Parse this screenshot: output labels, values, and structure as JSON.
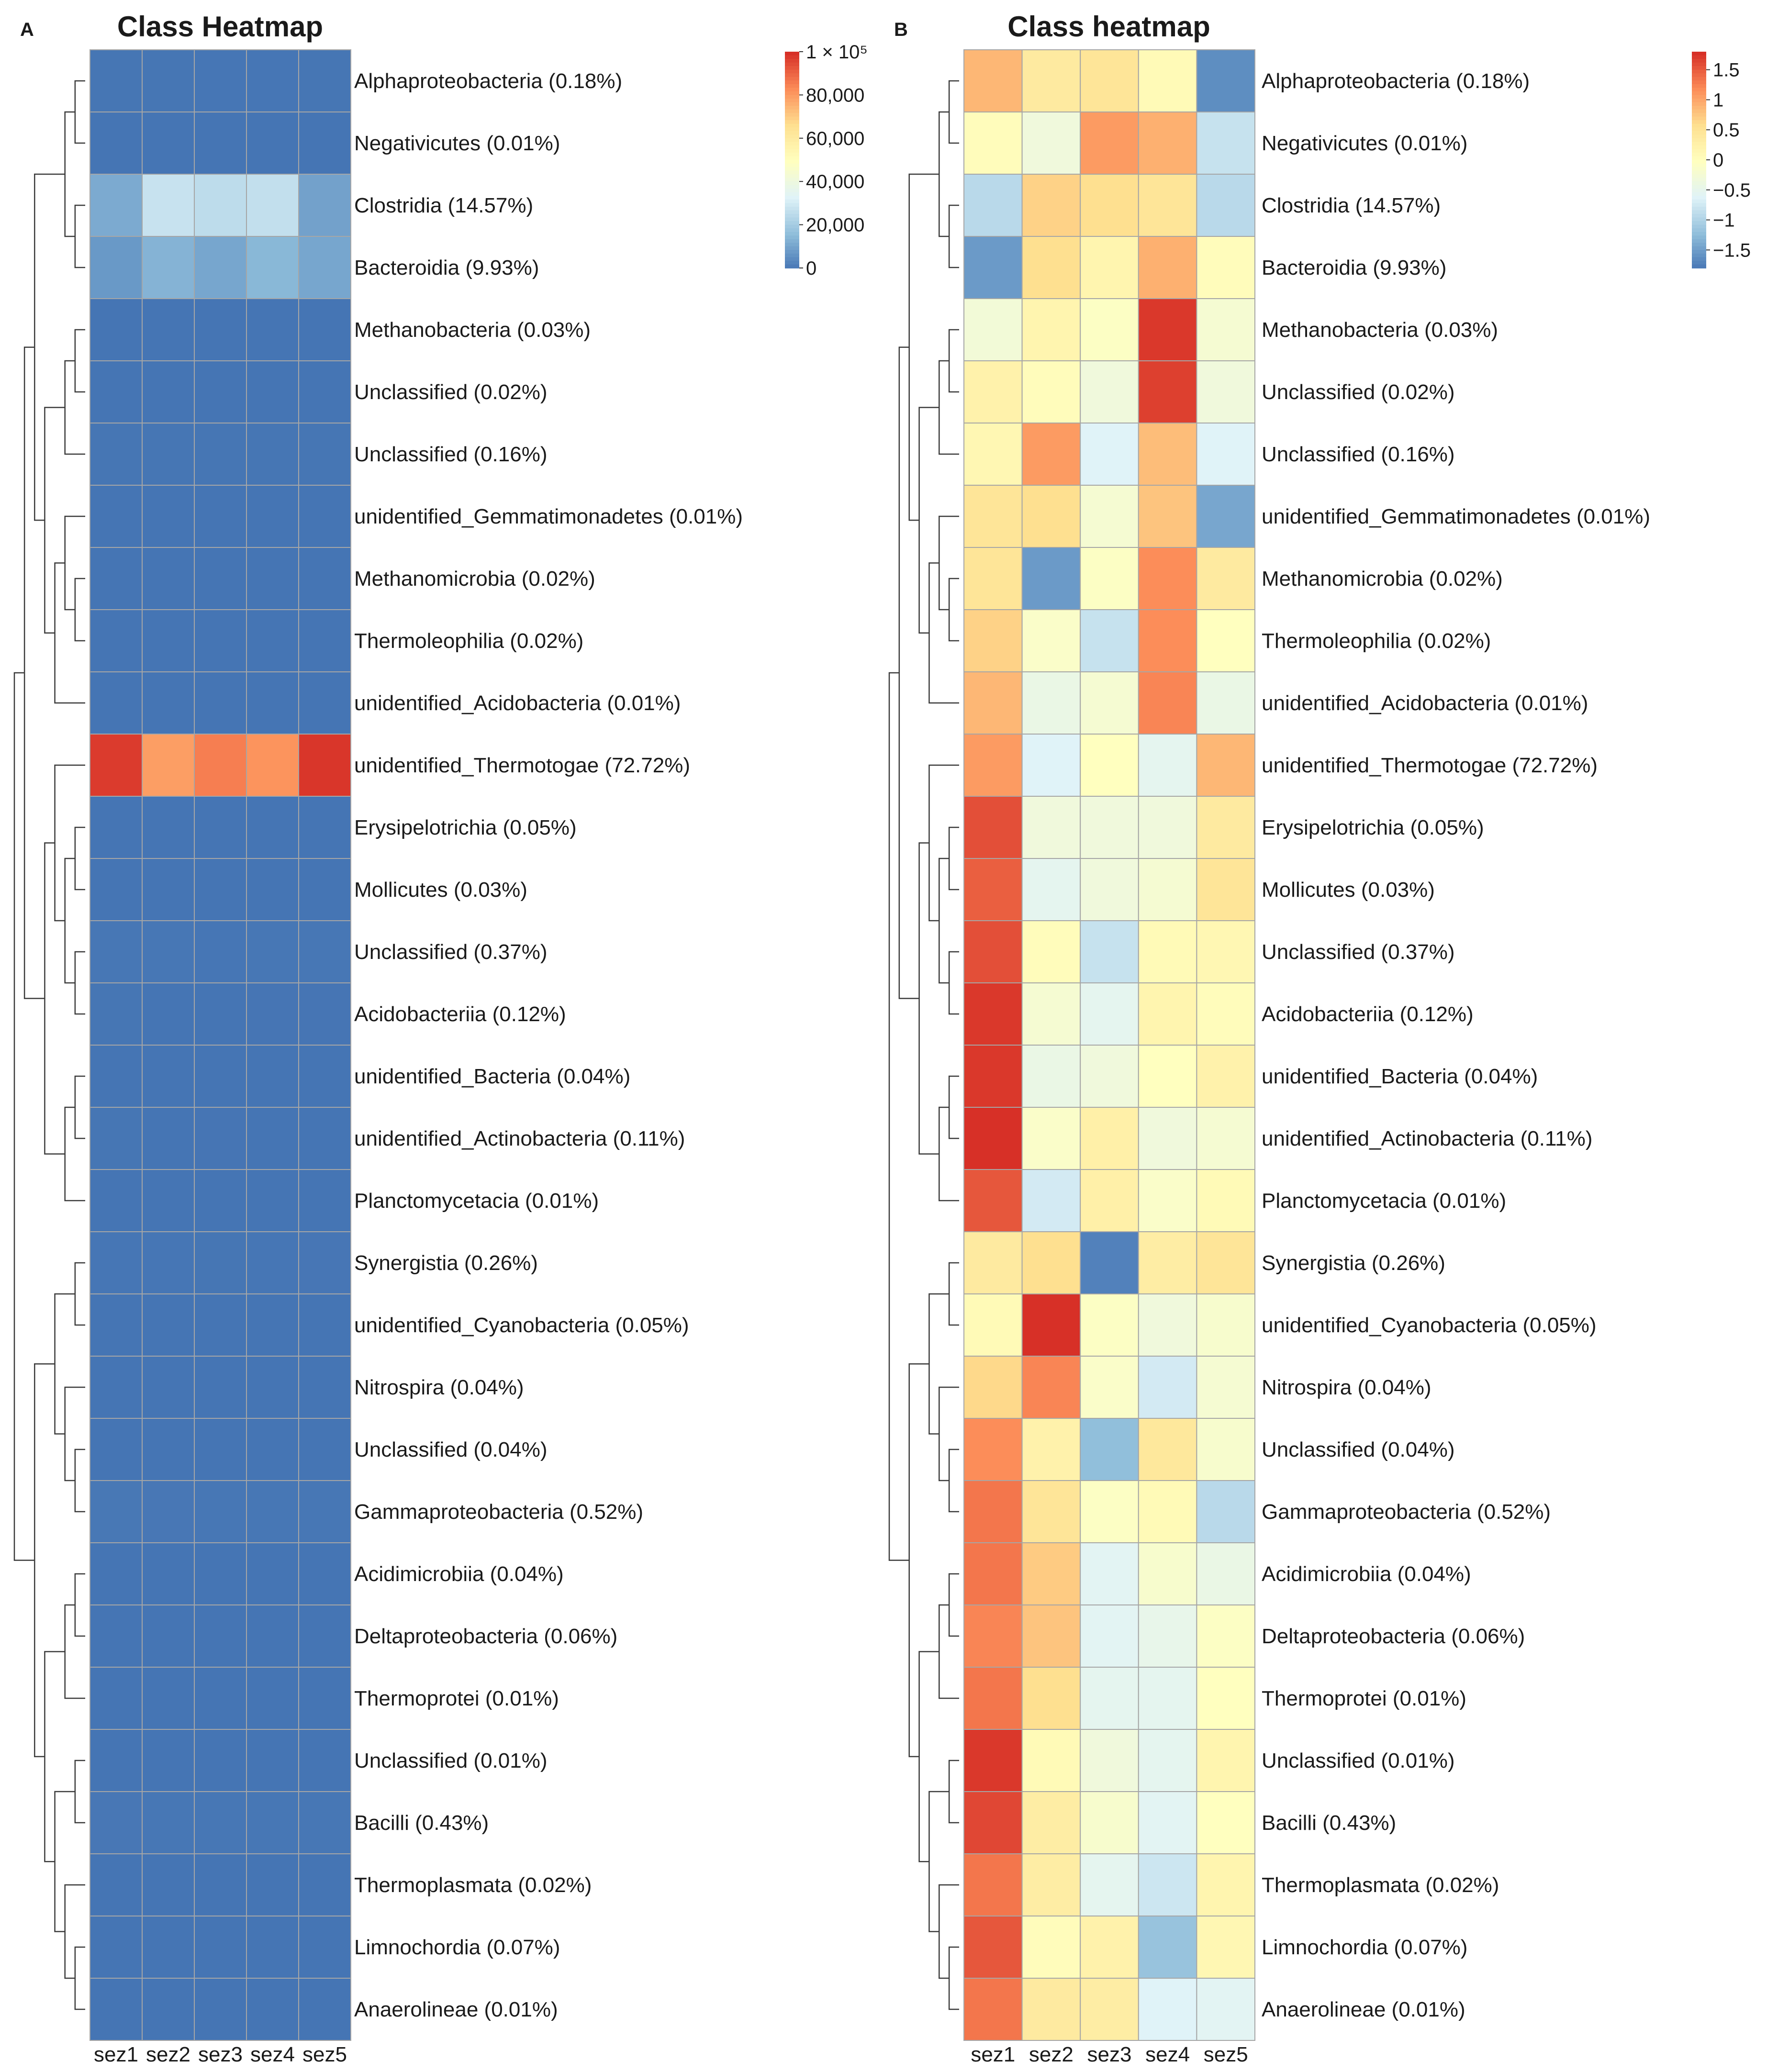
{
  "chart_data": [
    {
      "type": "heatmap",
      "panel": "A",
      "title": "Class Heatmap",
      "columns": [
        "sez1",
        "sez2",
        "sez3",
        "sez4",
        "sez5"
      ],
      "rows": [
        "Alphaproteobacteria (0.18%)",
        "Negativicutes (0.01%)",
        "Clostridia (14.57%)",
        "Bacteroidia (9.93%)",
        "Methanobacteria (0.03%)",
        "Unclassified (0.02%)",
        "Unclassified (0.16%)",
        "unidentified_Gemmatimonadetes (0.01%)",
        "Methanomicrobia (0.02%)",
        "Thermoleophilia (0.02%)",
        "unidentified_Acidobacteria (0.01%)",
        "unidentified_Thermotogae (72.72%)",
        "Erysipelotrichia (0.05%)",
        "Mollicutes (0.03%)",
        "Unclassified (0.37%)",
        "Acidobacteriia (0.12%)",
        "unidentified_Bacteria (0.04%)",
        "unidentified_Actinobacteria (0.11%)",
        "Planctomycetacia (0.01%)",
        "Synergistia (0.26%)",
        "unidentified_Cyanobacteria (0.05%)",
        "Nitrospira (0.04%)",
        "Unclassified (0.04%)",
        "Gammaproteobacteria (0.52%)",
        "Acidimicrobiia (0.04%)",
        "Deltaproteobacteria (0.06%)",
        "Thermoprotei (0.01%)",
        "Unclassified (0.01%)",
        "Bacilli (0.43%)",
        "Thermoplasmata (0.02%)",
        "Limnochordia (0.07%)",
        "Anaerolineae (0.01%)"
      ],
      "values": [
        [
          200,
          150,
          300,
          250,
          150
        ],
        [
          10,
          10,
          20,
          15,
          10
        ],
        [
          12000,
          28000,
          26000,
          27000,
          10000
        ],
        [
          8000,
          14000,
          11000,
          15000,
          11000
        ],
        [
          30,
          40,
          30,
          60,
          30
        ],
        [
          20,
          20,
          20,
          30,
          20
        ],
        [
          150,
          200,
          150,
          180,
          120
        ],
        [
          10,
          10,
          10,
          12,
          8
        ],
        [
          20,
          15,
          20,
          25,
          20
        ],
        [
          20,
          20,
          15,
          25,
          20
        ],
        [
          10,
          10,
          10,
          12,
          10
        ],
        [
          98000,
          80000,
          86000,
          82000,
          99000
        ],
        [
          60,
          40,
          40,
          40,
          50
        ],
        [
          40,
          25,
          25,
          30,
          35
        ],
        [
          500,
          350,
          300,
          350,
          350
        ],
        [
          150,
          100,
          100,
          110,
          110
        ],
        [
          50,
          35,
          35,
          40,
          40
        ],
        [
          150,
          100,
          110,
          100,
          100
        ],
        [
          15,
          10,
          12,
          10,
          12
        ],
        [
          300,
          320,
          200,
          300,
          330
        ],
        [
          50,
          80,
          50,
          50,
          50
        ],
        [
          45,
          50,
          40,
          38,
          40
        ],
        [
          50,
          45,
          40,
          45,
          40
        ],
        [
          600,
          550,
          500,
          500,
          450
        ],
        [
          50,
          48,
          40,
          40,
          40
        ],
        [
          70,
          68,
          55,
          55,
          60
        ],
        [
          12,
          11,
          9,
          9,
          10
        ],
        [
          15,
          11,
          10,
          10,
          11
        ],
        [
          550,
          450,
          400,
          380,
          420
        ],
        [
          25,
          22,
          18,
          17,
          21
        ],
        [
          90,
          70,
          75,
          55,
          70
        ],
        [
          13,
          11,
          11,
          9,
          9
        ]
      ],
      "legend": {
        "ticks": [
          "0",
          "20,000",
          "40,000",
          "60,000",
          "80,000",
          "1 × 10⁵"
        ],
        "tick_values": [
          0,
          20000,
          40000,
          60000,
          80000,
          100000
        ],
        "range": [
          0,
          100000
        ],
        "position": "top-right"
      },
      "colors": [
        "#4575b4",
        "#91bfdb",
        "#e0f3f8",
        "#ffffbf",
        "#fee090",
        "#fc8d59",
        "#d73027"
      ]
    },
    {
      "type": "heatmap",
      "panel": "B",
      "title": "Class heatmap",
      "columns": [
        "sez1",
        "sez2",
        "sez3",
        "sez4",
        "sez5"
      ],
      "rows": [
        "Alphaproteobacteria (0.18%)",
        "Negativicutes (0.01%)",
        "Clostridia (14.57%)",
        "Bacteroidia (9.93%)",
        "Methanobacteria (0.03%)",
        "Unclassified (0.02%)",
        "Unclassified (0.16%)",
        "unidentified_Gemmatimonadetes (0.01%)",
        "Methanomicrobia (0.02%)",
        "Thermoleophilia (0.02%)",
        "unidentified_Acidobacteria (0.01%)",
        "unidentified_Thermotogae (72.72%)",
        "Erysipelotrichia (0.05%)",
        "Mollicutes (0.03%)",
        "Unclassified (0.37%)",
        "Acidobacteriia (0.12%)",
        "unidentified_Bacteria (0.04%)",
        "unidentified_Actinobacteria (0.11%)",
        "Planctomycetacia (0.01%)",
        "Synergistia (0.26%)",
        "unidentified_Cyanobacteria (0.05%)",
        "Nitrospira (0.04%)",
        "Unclassified (0.04%)",
        "Gammaproteobacteria (0.52%)",
        "Acidimicrobiia (0.04%)",
        "Deltaproteobacteria (0.06%)",
        "Thermoprotei (0.01%)",
        "Unclassified (0.01%)",
        "Bacilli (0.43%)",
        "Thermoplasmata (0.02%)",
        "Limnochordia (0.07%)",
        "Anaerolineae (0.01%)"
      ],
      "values": [
        [
          0.9,
          0.4,
          0.5,
          0.1,
          -1.6
        ],
        [
          0.05,
          -0.3,
          1.1,
          0.95,
          -0.8
        ],
        [
          -0.9,
          0.7,
          0.6,
          0.5,
          -0.9
        ],
        [
          -1.5,
          0.6,
          0.2,
          0.95,
          0.05
        ],
        [
          -0.25,
          0.2,
          -0.05,
          1.75,
          -0.2
        ],
        [
          0.25,
          0.05,
          -0.3,
          1.7,
          -0.3
        ],
        [
          0.15,
          1.1,
          -0.6,
          0.85,
          -0.6
        ],
        [
          0.5,
          0.6,
          -0.2,
          0.8,
          -1.4
        ],
        [
          0.5,
          -1.5,
          -0.05,
          1.2,
          0.4
        ],
        [
          0.7,
          -0.1,
          -0.8,
          1.2,
          0.0
        ],
        [
          0.9,
          -0.4,
          -0.2,
          1.25,
          -0.4
        ],
        [
          1.1,
          -0.6,
          0.0,
          -0.5,
          0.9
        ],
        [
          1.6,
          -0.3,
          -0.3,
          -0.3,
          0.4
        ],
        [
          1.5,
          -0.5,
          -0.3,
          -0.2,
          0.5
        ],
        [
          1.6,
          0.05,
          -0.8,
          0.1,
          0.15
        ],
        [
          1.75,
          -0.2,
          -0.5,
          0.2,
          0.05
        ],
        [
          1.75,
          -0.4,
          -0.3,
          0.0,
          0.25
        ],
        [
          1.8,
          -0.1,
          0.3,
          -0.3,
          -0.2
        ],
        [
          1.55,
          -0.7,
          0.3,
          -0.1,
          0.1
        ],
        [
          0.4,
          0.6,
          -1.7,
          0.35,
          0.5
        ],
        [
          0.1,
          1.8,
          -0.05,
          -0.3,
          -0.15
        ],
        [
          0.65,
          1.25,
          -0.1,
          -0.7,
          -0.2
        ],
        [
          1.2,
          0.25,
          -1.2,
          0.45,
          -0.15
        ],
        [
          1.35,
          0.5,
          -0.05,
          0.1,
          -0.9
        ],
        [
          1.35,
          0.75,
          -0.55,
          -0.15,
          -0.4
        ],
        [
          1.25,
          0.8,
          -0.55,
          -0.45,
          -0.05
        ],
        [
          1.35,
          0.6,
          -0.5,
          -0.5,
          0.0
        ],
        [
          1.75,
          0.1,
          -0.3,
          -0.5,
          0.2
        ],
        [
          1.65,
          0.35,
          -0.15,
          -0.55,
          0.0
        ],
        [
          1.35,
          0.35,
          -0.5,
          -0.75,
          0.2
        ],
        [
          1.55,
          0.05,
          0.25,
          -1.15,
          0.15
        ],
        [
          1.35,
          0.4,
          0.35,
          -0.6,
          -0.55
        ]
      ],
      "legend": {
        "ticks": [
          "1.5",
          "1",
          "0.5",
          "0",
          "−0.5",
          "−1",
          "−1.5"
        ],
        "tick_values": [
          1.5,
          1,
          0.5,
          0,
          -0.5,
          -1,
          -1.5
        ],
        "range": [
          -1.8,
          1.8
        ],
        "position": "top-right"
      },
      "colors": [
        "#4575b4",
        "#91bfdb",
        "#e0f3f8",
        "#ffffbf",
        "#fee090",
        "#fc8d59",
        "#d73027"
      ]
    }
  ]
}
